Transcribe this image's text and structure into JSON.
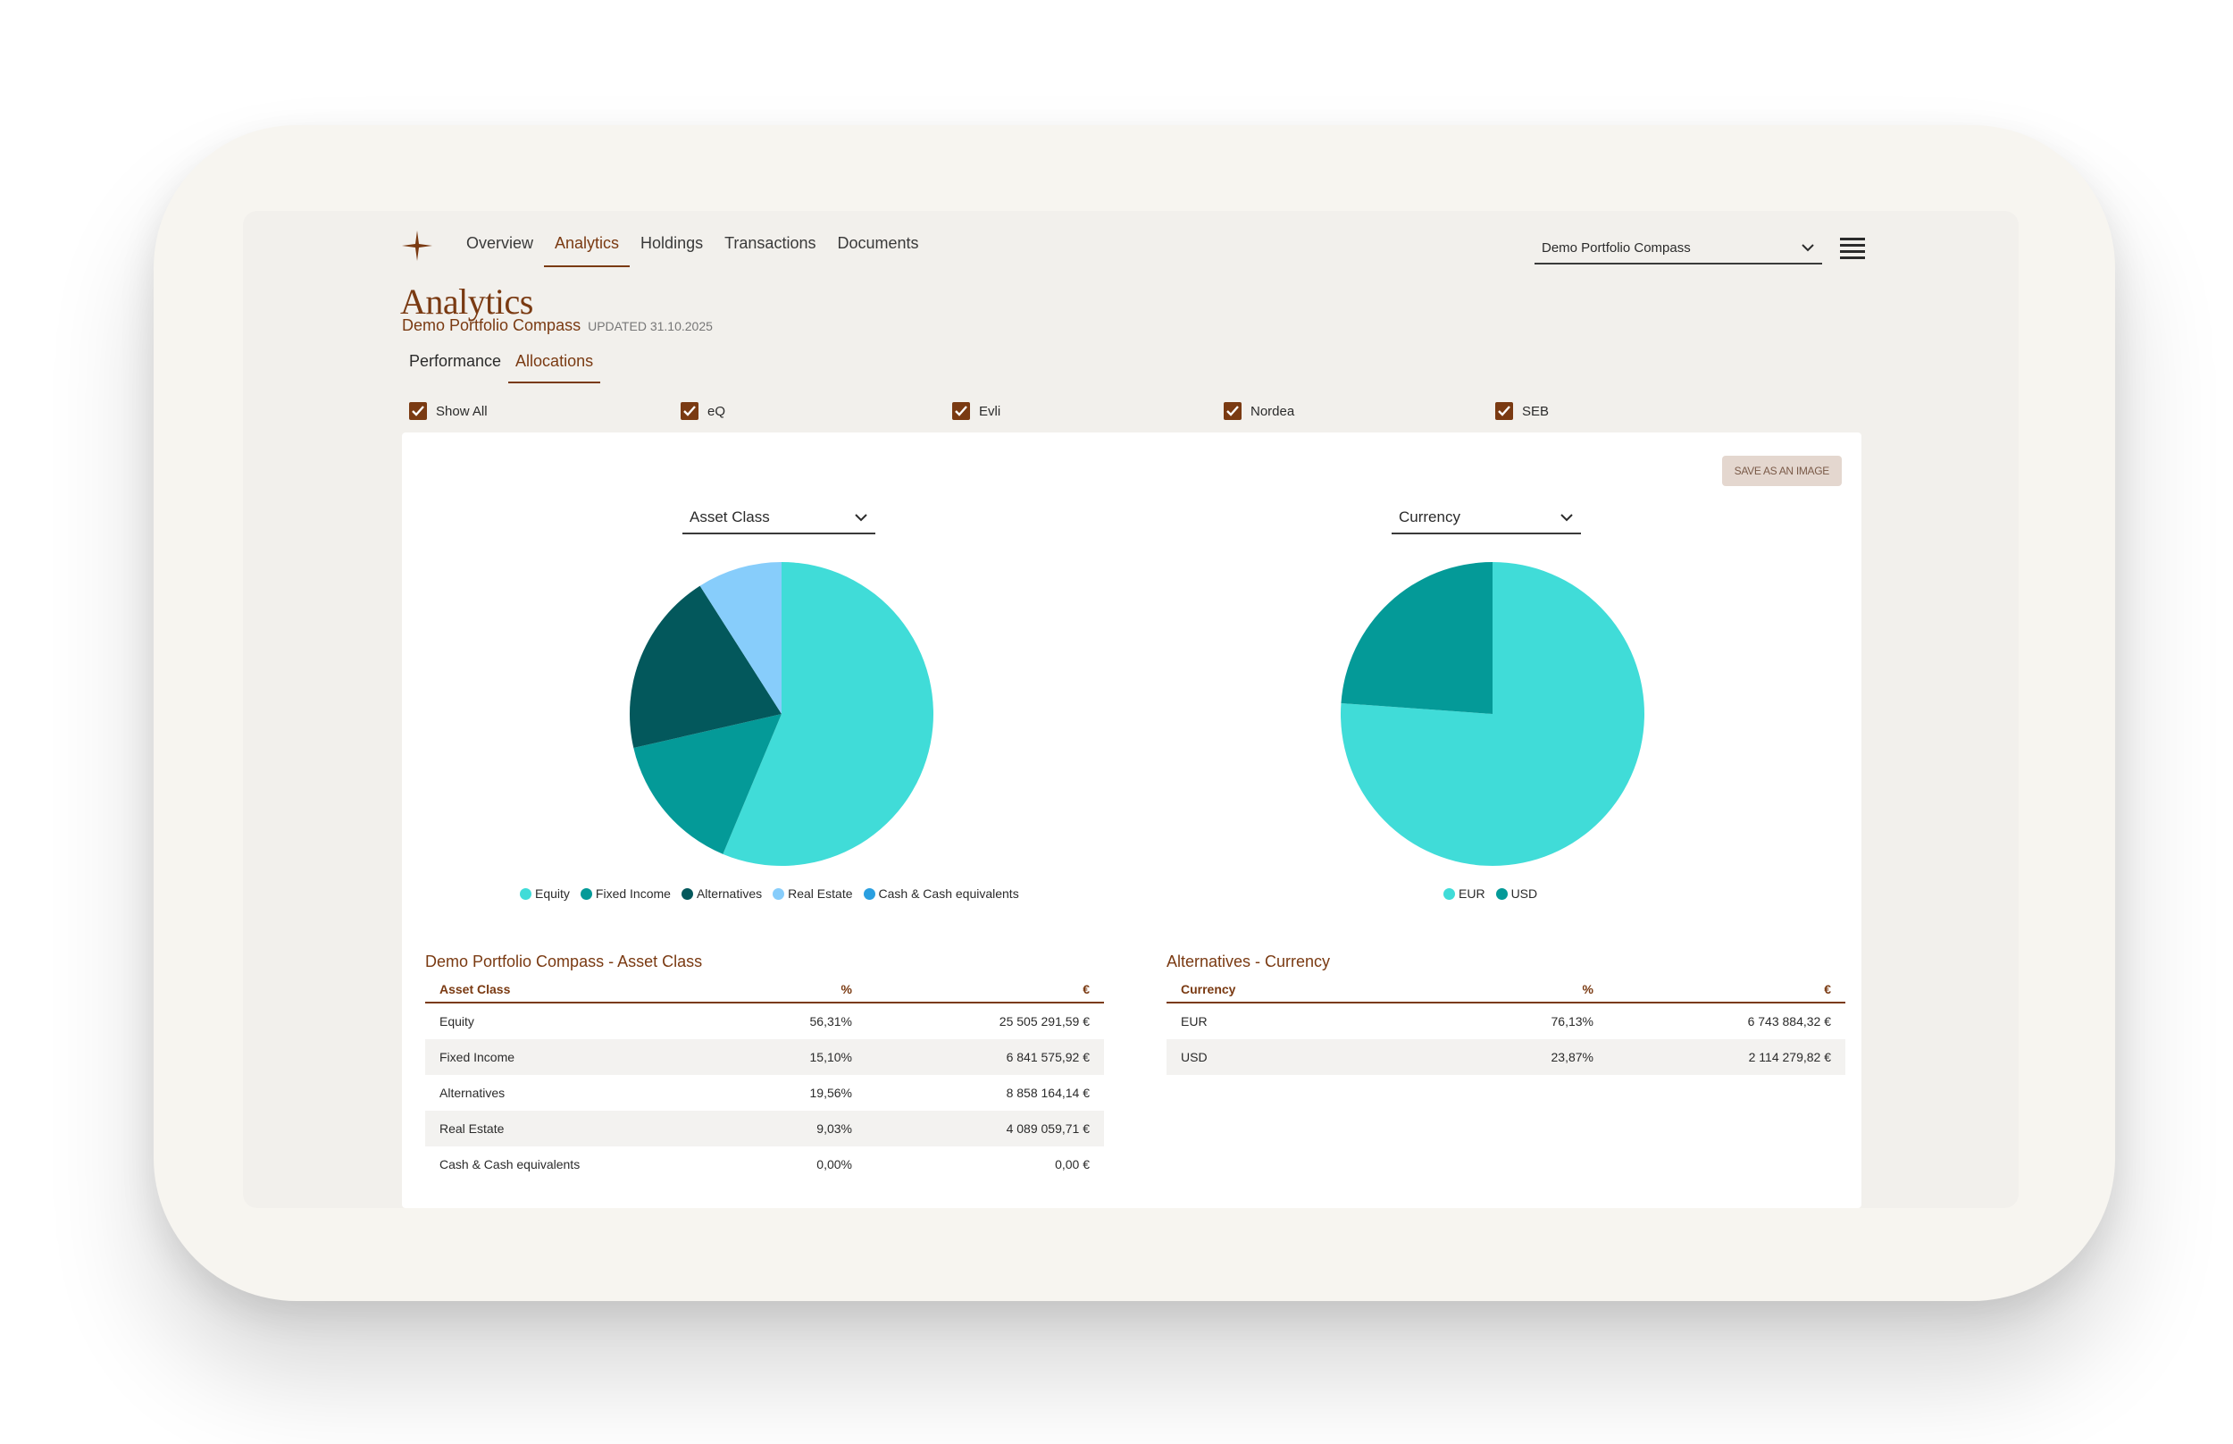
{
  "nav": {
    "items": [
      "Overview",
      "Analytics",
      "Holdings",
      "Transactions",
      "Documents"
    ],
    "active": "Analytics"
  },
  "portfolio_select": {
    "value": "Demo Portfolio Compass"
  },
  "header": {
    "title": "Analytics",
    "portfolio": "Demo Portfolio Compass",
    "updated": "UPDATED 31.10.2025"
  },
  "subtabs": {
    "performance": "Performance",
    "allocations": "Allocations"
  },
  "filters": [
    "Show All",
    "eQ",
    "Evli",
    "Nordea",
    "SEB"
  ],
  "save_button": "SAVE AS AN IMAGE",
  "left_dropdown": "Asset Class",
  "right_dropdown": "Currency",
  "colors": {
    "accent": "#7a3a12",
    "equity": "#40dcd8",
    "fixed_income": "#049a98",
    "alternatives": "#03585c",
    "real_estate": "#87cdfb",
    "cash": "#2a9fe0",
    "eur": "#40dcd8",
    "usd": "#049a98"
  },
  "chart_data": [
    {
      "type": "pie",
      "categories": [
        "Equity",
        "Fixed Income",
        "Alternatives",
        "Real Estate",
        "Cash & Cash equivalents"
      ],
      "values": [
        56.31,
        15.1,
        19.56,
        9.03,
        0.0
      ],
      "colors": [
        "#40dcd8",
        "#049a98",
        "#03585c",
        "#87cdfb",
        "#2a9fe0"
      ]
    },
    {
      "type": "pie",
      "categories": [
        "EUR",
        "USD"
      ],
      "values": [
        76.13,
        23.87
      ],
      "colors": [
        "#40dcd8",
        "#049a98"
      ]
    }
  ],
  "asset_table": {
    "title": "Demo Portfolio Compass - Asset Class",
    "headers": [
      "Asset Class",
      "%",
      "€"
    ],
    "rows": [
      [
        "Equity",
        "56,31%",
        "25 505 291,59 €"
      ],
      [
        "Fixed Income",
        "15,10%",
        "6 841 575,92 €"
      ],
      [
        "Alternatives",
        "19,56%",
        "8 858 164,14 €"
      ],
      [
        "Real Estate",
        "9,03%",
        "4 089 059,71 €"
      ],
      [
        "Cash & Cash equivalents",
        "0,00%",
        "0,00 €"
      ]
    ]
  },
  "currency_table": {
    "title": "Alternatives - Currency",
    "headers": [
      "Currency",
      "%",
      "€"
    ],
    "rows": [
      [
        "EUR",
        "76,13%",
        "6 743 884,32 €"
      ],
      [
        "USD",
        "23,87%",
        "2 114 279,82 €"
      ]
    ]
  }
}
